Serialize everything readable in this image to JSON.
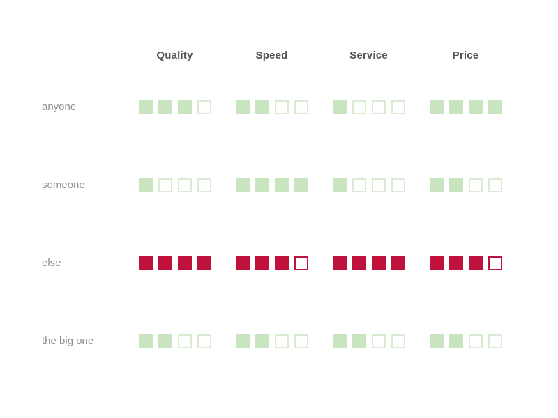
{
  "table": {
    "columns": [
      "Quality",
      "Speed",
      "Service",
      "Price"
    ],
    "max_rating": 4,
    "rows": [
      {
        "label": "anyone",
        "color": "green",
        "ratings": [
          3,
          2,
          1,
          4
        ]
      },
      {
        "label": "someone",
        "color": "green",
        "ratings": [
          1,
          4,
          1,
          2
        ]
      },
      {
        "label": "else",
        "color": "red",
        "ratings": [
          4,
          3,
          4,
          3
        ]
      },
      {
        "label": "the big one",
        "color": "green",
        "ratings": [
          2,
          2,
          2,
          2
        ]
      }
    ]
  },
  "colors": {
    "green_fill": "#c8e5bf",
    "green_border": "#d9ecd2",
    "red_fill": "#c1123e",
    "red_border": "#c1123e",
    "header_text": "#555555",
    "label_text": "#8e8e8e",
    "divider": "#e0e0e0"
  },
  "chart_data": {
    "type": "table",
    "title": "",
    "categories": [
      "Quality",
      "Speed",
      "Service",
      "Price"
    ],
    "series": [
      {
        "name": "anyone",
        "values": [
          3,
          2,
          1,
          4
        ]
      },
      {
        "name": "someone",
        "values": [
          1,
          4,
          1,
          2
        ]
      },
      {
        "name": "else",
        "values": [
          4,
          3,
          4,
          3
        ]
      },
      {
        "name": "the big one",
        "values": [
          2,
          2,
          2,
          2
        ]
      }
    ],
    "value_range": [
      0,
      4
    ],
    "legend_position": "none",
    "notes": "Ratings shown as 4 squares per cell; filled = points earned. Row 'else' highlighted in crimson red, all other rows pastel green."
  }
}
